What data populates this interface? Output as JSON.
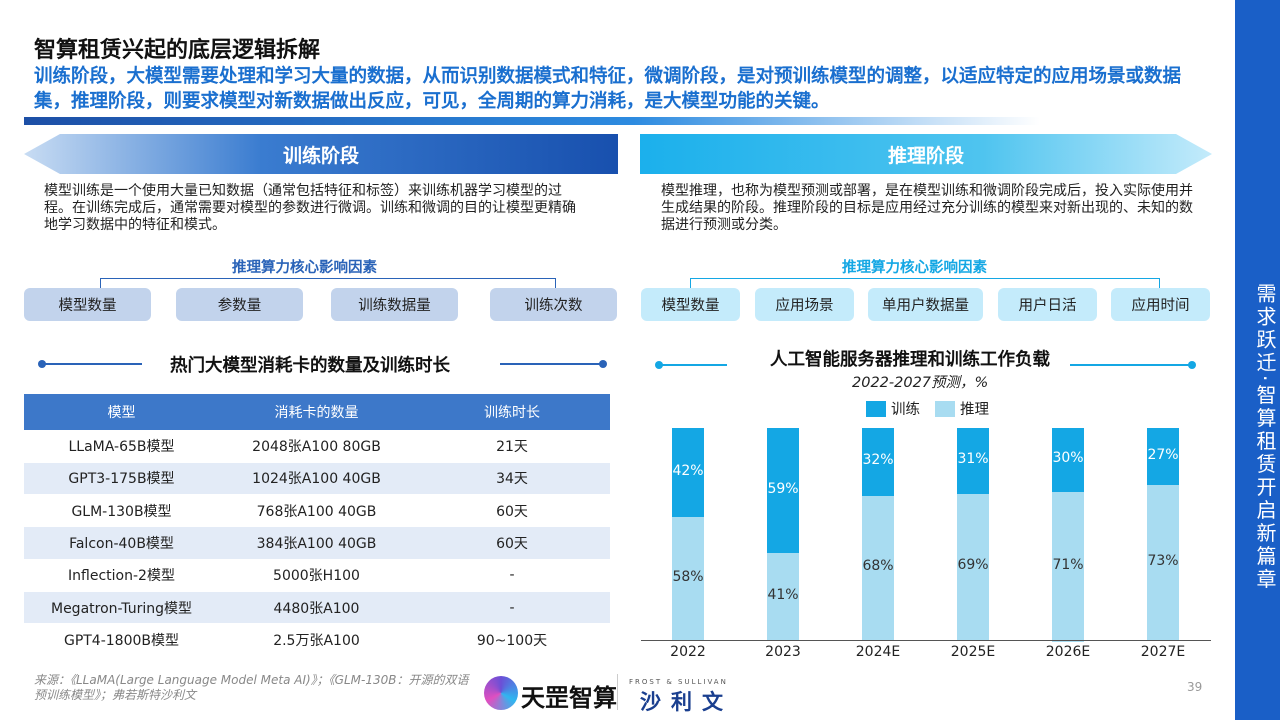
{
  "header": {
    "title": "智算租赁兴起的底层逻辑拆解",
    "subtitle": "训练阶段，大模型需要处理和学习大量的数据，从而识别数据模式和特征，微调阶段，是对预训练模型的调整，以适应特定的应用场景或数据集，推理阶段，则要求模型对新数据做出反应，可见，全周期的算力消耗，是大模型功能的关键。"
  },
  "sidebar": {
    "text": "需求跃迁·智算租赁开启新篇章"
  },
  "training": {
    "banner": "训练阶段",
    "desc": "模型训练是一个使用大量已知数据（通常包括特征和标签）来训练机器学习模型的过程。在训练完成后，通常需要对模型的参数进行微调。训练和微调的目的让模型更精确地学习数据中的特征和模式。",
    "factors_title": "推理算力核心影响因素",
    "factors": [
      "模型数量",
      "参数量",
      "训练数据量",
      "训练次数"
    ]
  },
  "inference": {
    "banner": "推理阶段",
    "desc": "模型推理，也称为模型预测或部署，是在模型训练和微调阶段完成后，投入实际使用并生成结果的阶段。推理阶段的目标是应用经过充分训练的模型来对新出现的、未知的数据进行预测或分类。",
    "factors_title": "推理算力核心影响因素",
    "factors": [
      "模型数量",
      "应用场景",
      "单用户数据量",
      "用户日活",
      "应用时间"
    ]
  },
  "table": {
    "title": "热门大模型消耗卡的数量及训练时长",
    "headers": [
      "模型",
      "消耗卡的数量",
      "训练时长"
    ],
    "rows": [
      [
        "LLaMA-65B模型",
        "2048张A100 80GB",
        "21天"
      ],
      [
        "GPT3-175B模型",
        "1024张A100 40GB",
        "34天"
      ],
      [
        "GLM-130B模型",
        "768张A100 40GB",
        "60天"
      ],
      [
        "Falcon-40B模型",
        "384张A100 40GB",
        "60天"
      ],
      [
        "Inflection-2模型",
        "5000张H100",
        "-"
      ],
      [
        "Megatron-Turing模型",
        "4480张A100",
        "-"
      ],
      [
        "GPT4-1800B模型",
        "2.5万张A100",
        "90~100天"
      ]
    ]
  },
  "chart_data": {
    "type": "bar",
    "stacked": true,
    "title": "人工智能服务器推理和训练工作负载",
    "subtitle": "2022-2027预测，%",
    "legend_position": "top",
    "categories": [
      "2022",
      "2023",
      "2024E",
      "2025E",
      "2026E",
      "2027E"
    ],
    "series": [
      {
        "name": "训练",
        "color": "#14a7e4",
        "values": [
          42,
          59,
          32,
          31,
          30,
          27
        ]
      },
      {
        "name": "推理",
        "color": "#a8dcf1",
        "values": [
          58,
          41,
          68,
          69,
          71,
          73
        ]
      }
    ],
    "ylim": [
      0,
      100
    ],
    "grid": false
  },
  "footer": {
    "source": "来源：《LLaMA(Large Language Model Meta AI)》；《GLM-130B：开源的双语预训练模型》；弗若斯特沙利文",
    "logo1": "天罡智算",
    "logo2_en": "FROST & SULLIVAN",
    "logo2": "沙利文",
    "page": "39"
  }
}
